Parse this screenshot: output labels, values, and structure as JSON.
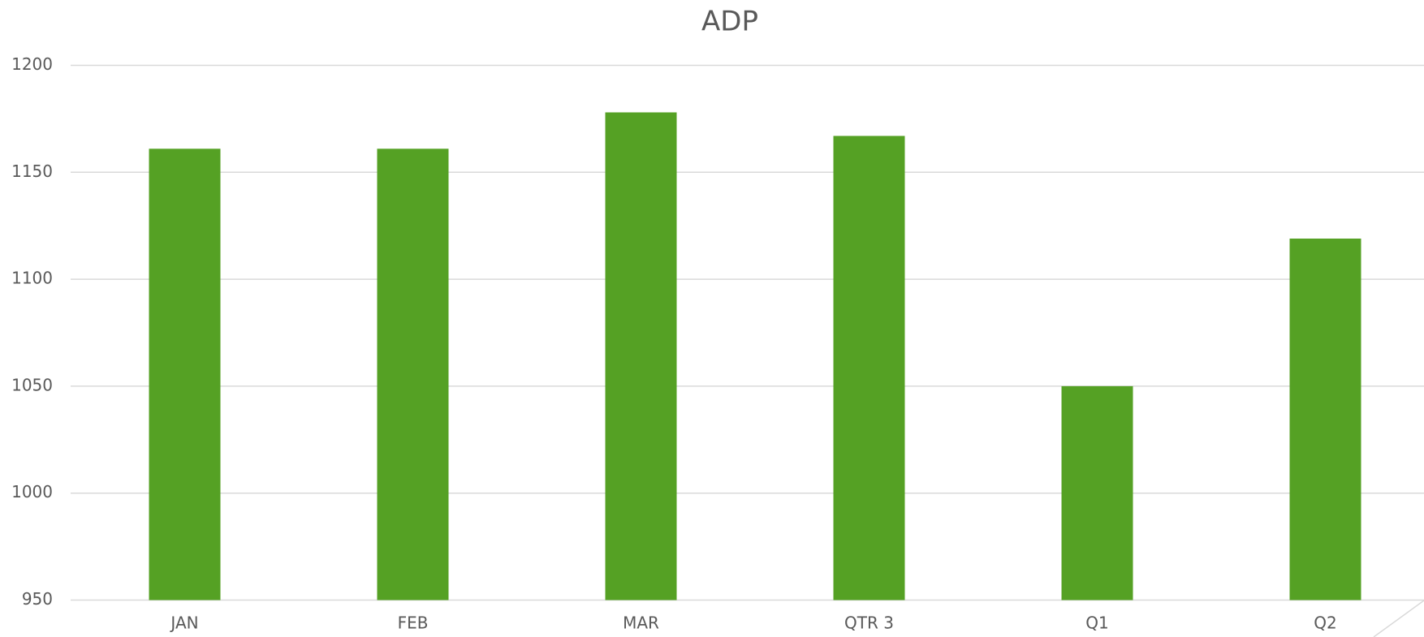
{
  "chart_data": {
    "type": "bar",
    "title": "ADP",
    "categories": [
      "JAN",
      "FEB",
      "MAR",
      "QTR 3",
      "Q1",
      "Q2"
    ],
    "values": [
      1161,
      1161,
      1178,
      1167,
      1050,
      1119
    ],
    "color": "#55a124",
    "ylim": [
      950,
      1200
    ],
    "yticks": [
      950,
      1000,
      1050,
      1100,
      1150,
      1200
    ],
    "grid": true
  }
}
